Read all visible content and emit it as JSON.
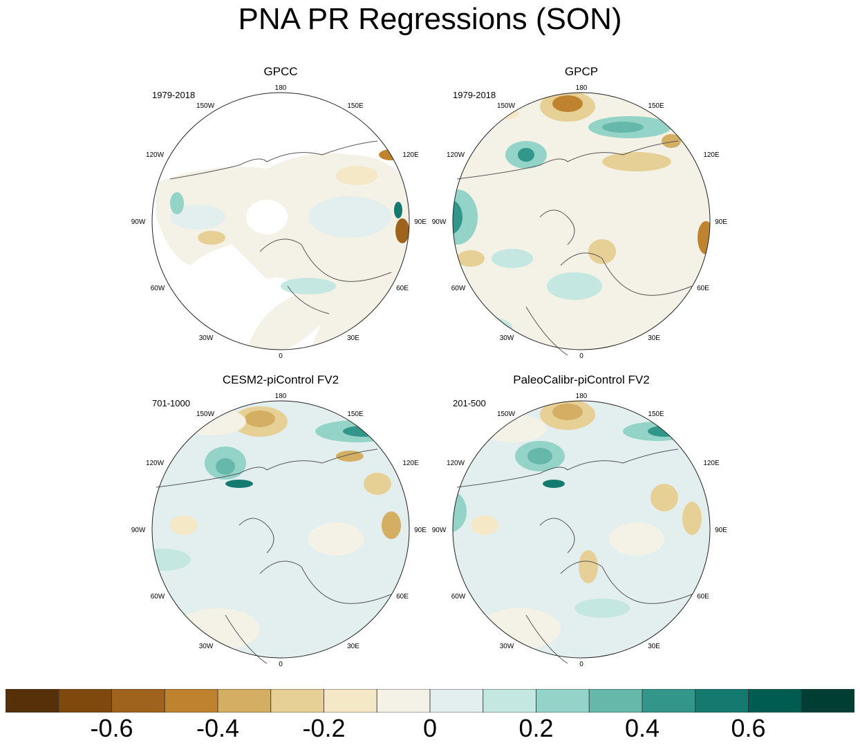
{
  "title": "PNA PR Regressions (SON)",
  "panels": [
    {
      "title": "GPCC",
      "period": "1979-2018"
    },
    {
      "title": "GPCP",
      "period": "1979-2018"
    },
    {
      "title": "CESM2-piControl FV2",
      "period": "701-1000"
    },
    {
      "title": "PaleoCalibr-piControl FV2",
      "period": "201-500"
    }
  ],
  "longitude_labels": [
    "180",
    "150E",
    "120E",
    "90E",
    "60E",
    "30E",
    "0",
    "30W",
    "60W",
    "90W",
    "120W",
    "150W"
  ],
  "colorbar": {
    "colors": [
      "#563008",
      "#7f480c",
      "#a0631d",
      "#bf822f",
      "#d4ae62",
      "#e6d096",
      "#f4e8c6",
      "#f4f1e6",
      "#e3efee",
      "#c4e8e1",
      "#94d4c8",
      "#66b8aa",
      "#33968a",
      "#147a6f",
      "#005c51",
      "#003d32"
    ],
    "tick_labels": [
      {
        "text": "-0.6",
        "boundary": 2
      },
      {
        "text": "-0.4",
        "boundary": 4
      },
      {
        "text": "-0.2",
        "boundary": 6
      },
      {
        "text": "0",
        "boundary": 8
      },
      {
        "text": "0.2",
        "boundary": 10
      },
      {
        "text": "0.4",
        "boundary": 12
      },
      {
        "text": "0.6",
        "boundary": 14
      }
    ]
  }
}
